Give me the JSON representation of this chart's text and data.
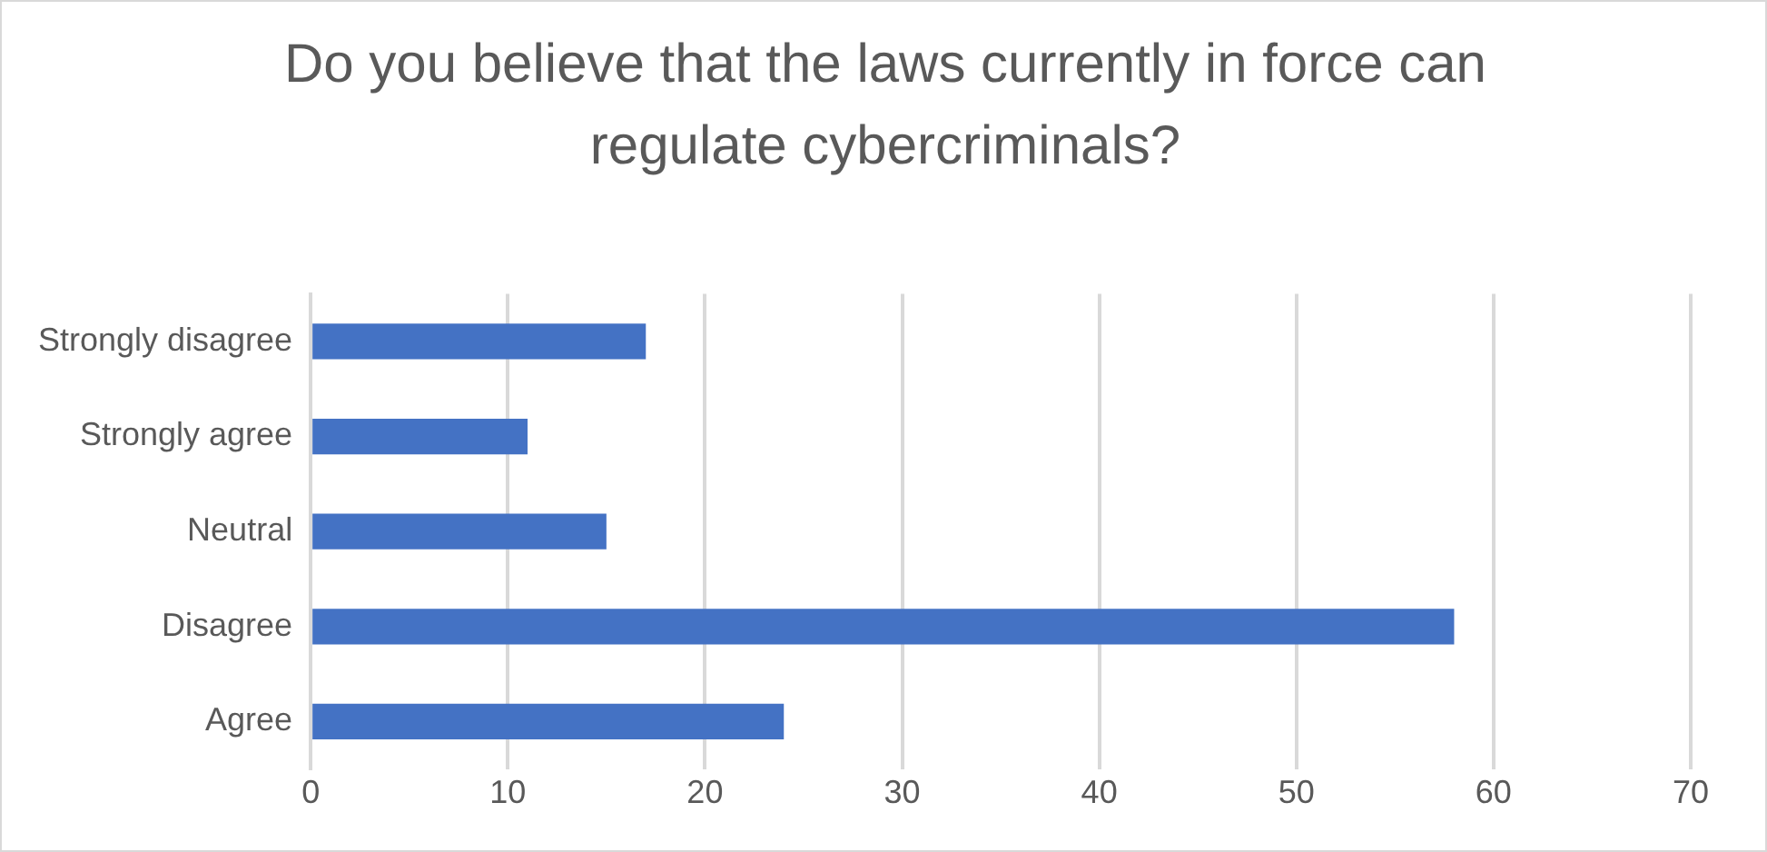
{
  "chart_data": {
    "type": "bar",
    "orientation": "horizontal",
    "title": "Do you believe that the laws currently in force can regulate cybercriminals?",
    "categories": [
      "Strongly disagree",
      "Strongly agree",
      "Neutral",
      "Disagree",
      "Agree"
    ],
    "values": [
      17,
      11,
      15,
      58,
      24
    ],
    "color": "#4472c4",
    "xlim": [
      0,
      70
    ],
    "xticks": [
      0,
      10,
      20,
      30,
      40,
      50,
      60,
      70
    ],
    "grid": "x"
  }
}
